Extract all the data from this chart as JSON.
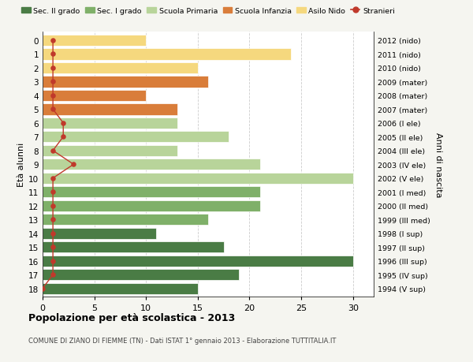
{
  "ages": [
    18,
    17,
    16,
    15,
    14,
    13,
    12,
    11,
    10,
    9,
    8,
    7,
    6,
    5,
    4,
    3,
    2,
    1,
    0
  ],
  "right_labels": [
    "1994 (V sup)",
    "1995 (IV sup)",
    "1996 (III sup)",
    "1997 (II sup)",
    "1998 (I sup)",
    "1999 (III med)",
    "2000 (II med)",
    "2001 (I med)",
    "2002 (V ele)",
    "2003 (IV ele)",
    "2004 (III ele)",
    "2005 (II ele)",
    "2006 (I ele)",
    "2007 (mater)",
    "2008 (mater)",
    "2009 (mater)",
    "2010 (nido)",
    "2011 (nido)",
    "2012 (nido)"
  ],
  "bar_values": [
    15,
    19,
    30,
    17.5,
    11,
    16,
    21,
    21,
    30,
    21,
    13,
    18,
    13,
    13,
    10,
    16,
    15,
    24,
    10
  ],
  "bar_colors": [
    "#4a7c45",
    "#4a7c45",
    "#4a7c45",
    "#4a7c45",
    "#4a7c45",
    "#7fb069",
    "#7fb069",
    "#7fb069",
    "#b8d49a",
    "#b8d49a",
    "#b8d49a",
    "#b8d49a",
    "#b8d49a",
    "#d97d3a",
    "#d97d3a",
    "#d97d3a",
    "#f5d87e",
    "#f5d87e",
    "#f5d87e"
  ],
  "stranieri_values": [
    0,
    1,
    1,
    1,
    1,
    1,
    1,
    1,
    1,
    3,
    1,
    2,
    2,
    1,
    1,
    1,
    1,
    1,
    1
  ],
  "title": "Popolazione per età scolastica - 2013",
  "subtitle": "COMUNE DI ZIANO DI FIEMME (TN) - Dati ISTAT 1° gennaio 2013 - Elaborazione TUTTITALIA.IT",
  "ylabel": "Età alunni",
  "ylabel2": "Anni di nascita",
  "xlim": [
    0,
    32
  ],
  "xticks": [
    0,
    5,
    10,
    15,
    20,
    25,
    30
  ],
  "bg_color": "#f5f5f0",
  "plot_bg_color": "#ffffff",
  "legend_items": [
    {
      "label": "Sec. II grado",
      "color": "#4a7c45"
    },
    {
      "label": "Sec. I grado",
      "color": "#7fb069"
    },
    {
      "label": "Scuola Primaria",
      "color": "#b8d49a"
    },
    {
      "label": "Scuola Infanzia",
      "color": "#d97d3a"
    },
    {
      "label": "Asilo Nido",
      "color": "#f5d87e"
    },
    {
      "label": "Stranieri",
      "color": "#c0392b"
    }
  ],
  "bar_height": 0.82,
  "grid_color": "#cccccc",
  "stranieri_color": "#c0392b",
  "stranieri_line_color": "#c0392b"
}
